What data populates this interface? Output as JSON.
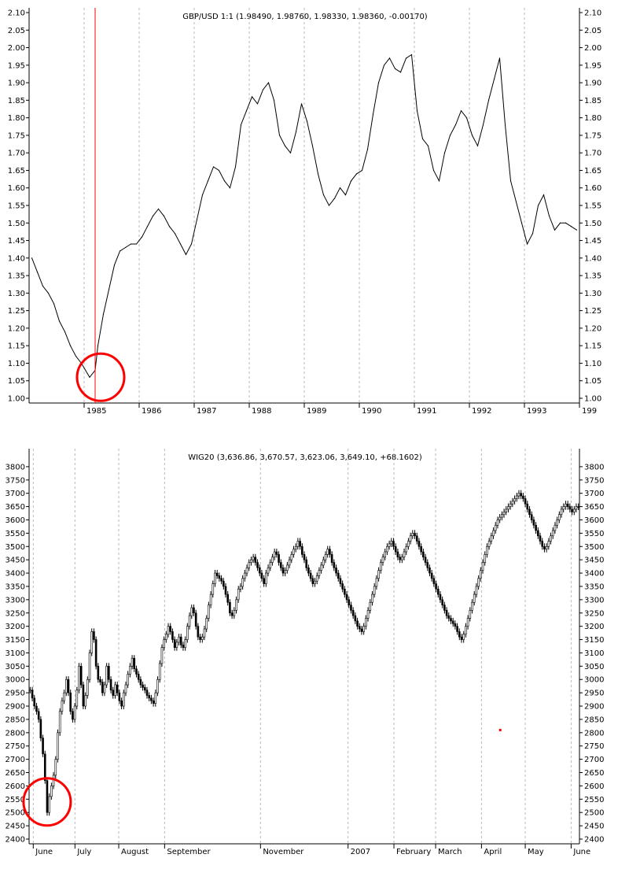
{
  "chart_data": [
    {
      "type": "line",
      "title": "GBP/USD 1:1 (1.98490, 1.98760, 1.98330, 1.98360, -0.00170)",
      "x_range": [
        1984.0,
        1994.0
      ],
      "ylim": [
        1.0,
        2.1
      ],
      "y_ticks": [
        "1.00",
        "1.05",
        "1.10",
        "1.15",
        "1.20",
        "1.25",
        "1.30",
        "1.35",
        "1.40",
        "1.45",
        "1.50",
        "1.55",
        "1.60",
        "1.65",
        "1.70",
        "1.75",
        "1.80",
        "1.85",
        "1.90",
        "1.95",
        "2.00",
        "2.05",
        "2.10"
      ],
      "x_labels": [
        {
          "label": "1985",
          "x": 1985.0
        },
        {
          "label": "1986",
          "x": 1986.0
        },
        {
          "label": "1987",
          "x": 1987.0
        },
        {
          "label": "1988",
          "x": 1988.0
        },
        {
          "label": "1989",
          "x": 1989.0
        },
        {
          "label": "1990",
          "x": 1990.0
        },
        {
          "label": "1991",
          "x": 1991.0
        },
        {
          "label": "1992",
          "x": 1992.0
        },
        {
          "label": "1993",
          "x": 1993.0
        },
        {
          "label": "199",
          "x": 1994.0
        }
      ],
      "grid": "vertical-dashed",
      "marker": {
        "x": 1985.2,
        "y": 1.06,
        "type": "vertical-line-and-circle",
        "color": "#ff0000"
      },
      "x": [
        1984.05,
        1984.15,
        1984.25,
        1984.35,
        1984.45,
        1984.55,
        1984.65,
        1984.75,
        1984.85,
        1984.95,
        1985.1,
        1985.2,
        1985.25,
        1985.35,
        1985.45,
        1985.55,
        1985.65,
        1985.75,
        1985.85,
        1985.95,
        1986.05,
        1986.15,
        1986.25,
        1986.35,
        1986.45,
        1986.55,
        1986.65,
        1986.75,
        1986.85,
        1986.95,
        1987.05,
        1987.15,
        1987.25,
        1987.35,
        1987.45,
        1987.55,
        1987.65,
        1987.75,
        1987.85,
        1987.95,
        1988.05,
        1988.15,
        1988.25,
        1988.35,
        1988.45,
        1988.55,
        1988.65,
        1988.75,
        1988.85,
        1988.95,
        1989.05,
        1989.15,
        1989.25,
        1989.35,
        1989.45,
        1989.55,
        1989.65,
        1989.75,
        1989.85,
        1989.95,
        1990.05,
        1990.15,
        1990.25,
        1990.35,
        1990.45,
        1990.55,
        1990.65,
        1990.75,
        1990.85,
        1990.95,
        1991.05,
        1991.15,
        1991.25,
        1991.35,
        1991.45,
        1991.55,
        1991.65,
        1991.75,
        1991.85,
        1991.95,
        1992.05,
        1992.15,
        1992.25,
        1992.35,
        1992.45,
        1992.55,
        1992.65,
        1992.75,
        1992.85,
        1992.95,
        1993.05,
        1993.15,
        1993.25,
        1993.35,
        1993.45,
        1993.55,
        1993.65,
        1993.75,
        1993.85,
        1993.95
      ],
      "values": [
        1.4,
        1.36,
        1.32,
        1.3,
        1.27,
        1.22,
        1.19,
        1.15,
        1.12,
        1.1,
        1.06,
        1.08,
        1.15,
        1.24,
        1.31,
        1.38,
        1.42,
        1.43,
        1.44,
        1.44,
        1.46,
        1.49,
        1.52,
        1.54,
        1.52,
        1.49,
        1.47,
        1.44,
        1.41,
        1.44,
        1.51,
        1.58,
        1.62,
        1.66,
        1.65,
        1.62,
        1.6,
        1.66,
        1.78,
        1.82,
        1.86,
        1.84,
        1.88,
        1.9,
        1.85,
        1.75,
        1.72,
        1.7,
        1.76,
        1.84,
        1.79,
        1.72,
        1.64,
        1.58,
        1.55,
        1.57,
        1.6,
        1.58,
        1.62,
        1.64,
        1.65,
        1.71,
        1.81,
        1.9,
        1.95,
        1.97,
        1.94,
        1.93,
        1.97,
        1.98,
        1.82,
        1.74,
        1.72,
        1.65,
        1.62,
        1.7,
        1.75,
        1.78,
        1.82,
        1.8,
        1.75,
        1.72,
        1.78,
        1.85,
        1.91,
        1.97,
        1.78,
        1.62,
        1.56,
        1.5,
        1.44,
        1.47,
        1.55,
        1.58,
        1.52,
        1.48,
        1.5,
        1.5,
        1.49,
        1.48
      ]
    },
    {
      "type": "candlestick",
      "title": "WIG20 (3,636.86, 3,670.57, 3,623.06, 3,649.10, +68.1602)",
      "x_range": [
        0,
        264
      ],
      "ylim": [
        2400,
        3850
      ],
      "y_ticks": [
        "2400",
        "2450",
        "2500",
        "2550",
        "2600",
        "2650",
        "2700",
        "2750",
        "2800",
        "2850",
        "2900",
        "2950",
        "3000",
        "3050",
        "3100",
        "3150",
        "3200",
        "3250",
        "3300",
        "3350",
        "3400",
        "3450",
        "3500",
        "3550",
        "3600",
        "3650",
        "3700",
        "3750",
        "3800"
      ],
      "x_labels": [
        {
          "label": "June",
          "x": 2
        },
        {
          "label": "July",
          "x": 22
        },
        {
          "label": "August",
          "x": 43
        },
        {
          "label": "September",
          "x": 65
        },
        {
          "label": "November",
          "x": 111
        },
        {
          "label": "2007",
          "x": 153
        },
        {
          "label": "February",
          "x": 175
        },
        {
          "label": "March",
          "x": 195
        },
        {
          "label": "April",
          "x": 217
        },
        {
          "label": "May",
          "x": 238
        },
        {
          "label": "June",
          "x": 260
        }
      ],
      "grid": "vertical-dashed",
      "marker": {
        "x": 6,
        "y": 2540,
        "type": "circle",
        "color": "#ff0000"
      },
      "annotation_dot": {
        "x": 226,
        "y": 2810,
        "color": "#ff0000"
      },
      "close": [
        2960,
        2930,
        2900,
        2880,
        2850,
        2780,
        2720,
        2620,
        2500,
        2560,
        2600,
        2640,
        2700,
        2800,
        2880,
        2920,
        2950,
        3000,
        2950,
        2880,
        2850,
        2900,
        2960,
        3050,
        2980,
        2900,
        2940,
        3000,
        3100,
        3180,
        3150,
        3050,
        3000,
        2990,
        2950,
        2980,
        3050,
        3000,
        2960,
        2940,
        2980,
        2950,
        2920,
        2900,
        2950,
        2980,
        3020,
        3050,
        3080,
        3040,
        3020,
        3000,
        2980,
        2970,
        2960,
        2940,
        2930,
        2920,
        2910,
        2950,
        3000,
        3060,
        3120,
        3150,
        3170,
        3200,
        3180,
        3150,
        3120,
        3140,
        3160,
        3130,
        3120,
        3150,
        3200,
        3240,
        3270,
        3250,
        3200,
        3160,
        3150,
        3160,
        3190,
        3230,
        3280,
        3320,
        3360,
        3400,
        3390,
        3380,
        3370,
        3350,
        3320,
        3290,
        3250,
        3240,
        3260,
        3300,
        3340,
        3350,
        3380,
        3400,
        3420,
        3440,
        3450,
        3460,
        3440,
        3420,
        3400,
        3380,
        3360,
        3400,
        3420,
        3440,
        3460,
        3480,
        3470,
        3440,
        3420,
        3400,
        3410,
        3430,
        3450,
        3470,
        3490,
        3500,
        3520,
        3500,
        3470,
        3450,
        3420,
        3400,
        3380,
        3360,
        3370,
        3390,
        3410,
        3430,
        3450,
        3470,
        3490,
        3470,
        3440,
        3420,
        3400,
        3380,
        3360,
        3340,
        3320,
        3300,
        3280,
        3260,
        3240,
        3220,
        3200,
        3190,
        3180,
        3200,
        3230,
        3260,
        3290,
        3320,
        3350,
        3380,
        3410,
        3440,
        3460,
        3480,
        3500,
        3510,
        3520,
        3500,
        3480,
        3460,
        3450,
        3460,
        3480,
        3500,
        3520,
        3540,
        3550,
        3540,
        3520,
        3500,
        3480,
        3460,
        3440,
        3420,
        3400,
        3380,
        3360,
        3340,
        3320,
        3300,
        3280,
        3260,
        3240,
        3230,
        3220,
        3210,
        3200,
        3180,
        3160,
        3150,
        3170,
        3200,
        3230,
        3260,
        3290,
        3320,
        3350,
        3380,
        3410,
        3440,
        3470,
        3500,
        3520,
        3540,
        3560,
        3580,
        3600,
        3610,
        3620,
        3630,
        3640,
        3650,
        3660,
        3670,
        3680,
        3690,
        3700,
        3690,
        3680,
        3660,
        3640,
        3620,
        3600,
        3580,
        3560,
        3540,
        3520,
        3500,
        3490,
        3500,
        3520,
        3540,
        3560,
        3580,
        3600,
        3620,
        3640,
        3650,
        3660,
        3650,
        3640,
        3630,
        3640,
        3650,
        3649
      ]
    }
  ]
}
